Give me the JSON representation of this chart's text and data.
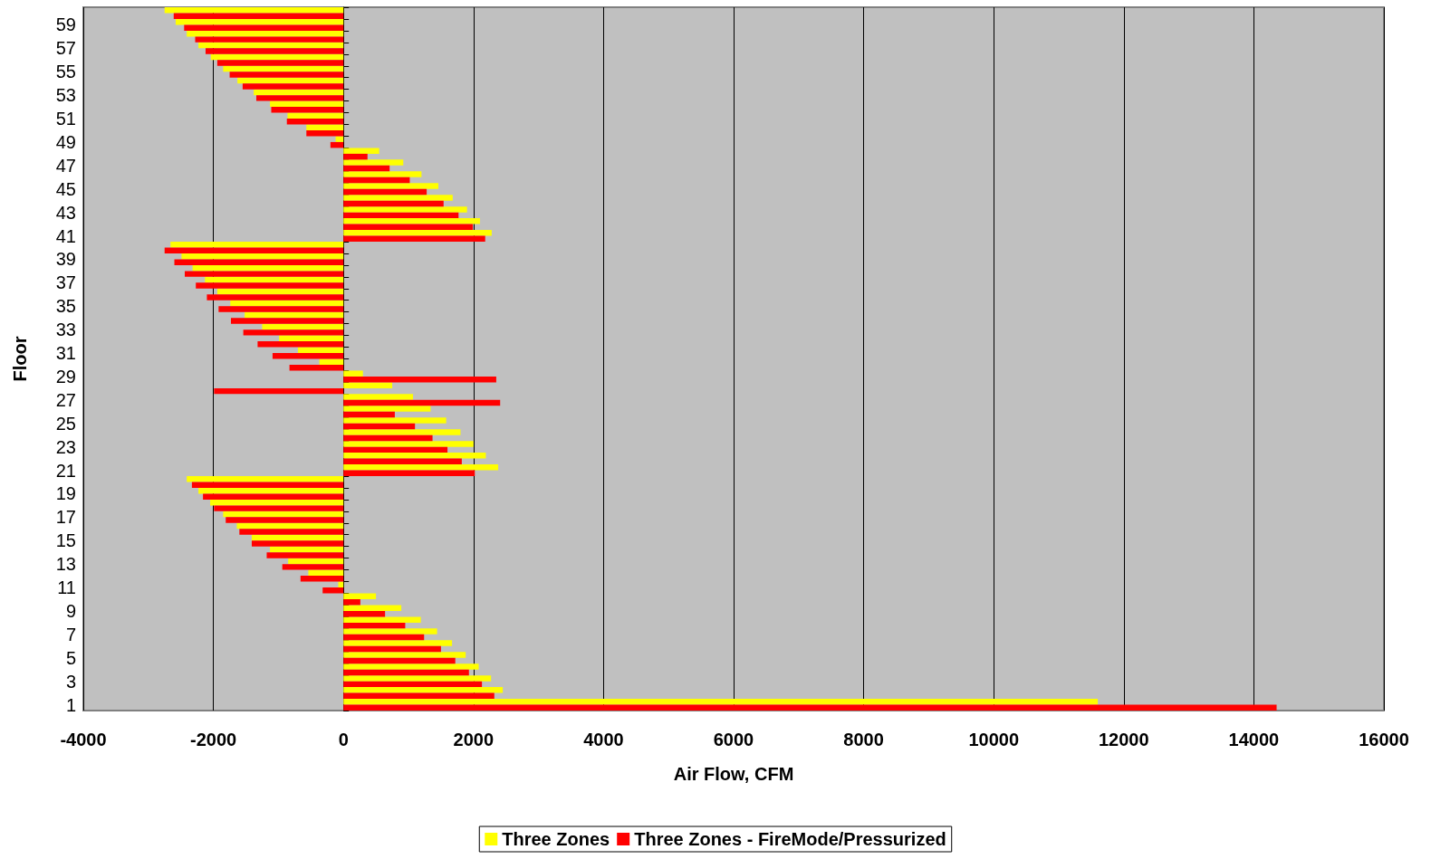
{
  "chart_data": {
    "type": "bar",
    "orientation": "horizontal",
    "xlabel": "Air Flow, CFM",
    "ylabel": "Floor",
    "categories": [
      null,
      "59",
      null,
      "57",
      null,
      "55",
      null,
      "53",
      null,
      "51",
      null,
      "49",
      null,
      "47",
      null,
      "45",
      null,
      "43",
      null,
      "41",
      null,
      "39",
      null,
      "37",
      null,
      "35",
      null,
      "33",
      null,
      "31",
      null,
      "29",
      null,
      "27",
      null,
      "25",
      null,
      "23",
      null,
      "21",
      null,
      "19",
      null,
      "17",
      null,
      "15",
      null,
      "13",
      null,
      "11",
      null,
      "9",
      null,
      "7",
      null,
      "5",
      null,
      "3",
      null,
      "1"
    ],
    "series": [
      {
        "name": "Three Zones",
        "color": "#ffff00",
        "values": [
          -2750,
          -2580,
          -2410,
          -2230,
          -2040,
          -1850,
          -1630,
          -1380,
          -1130,
          -860,
          -570,
          -120,
          550,
          920,
          1200,
          1460,
          1680,
          1900,
          2100,
          2280,
          -2660,
          -2490,
          -2320,
          -2130,
          -1940,
          -1740,
          -1520,
          -1250,
          -990,
          -700,
          -370,
          300,
          750,
          1070,
          1340,
          1580,
          1800,
          2000,
          2190,
          2380,
          -2410,
          -2230,
          -2050,
          -1850,
          -1640,
          -1410,
          -1130,
          -850,
          -540,
          -80,
          500,
          890,
          1190,
          1440,
          1670,
          1880,
          2080,
          2270,
          2450,
          11600
        ]
      },
      {
        "name": "Three Zones - FireMode/Pressurized",
        "color": "#ff0000",
        "values": [
          -2610,
          -2450,
          -2280,
          -2120,
          -1940,
          -1750,
          -1550,
          -1340,
          -1110,
          -870,
          -570,
          -200,
          370,
          710,
          1020,
          1280,
          1540,
          1770,
          1990,
          2180,
          -2750,
          -2600,
          -2440,
          -2270,
          -2100,
          -1920,
          -1730,
          -1540,
          -1320,
          -1090,
          -830,
          2350,
          -1990,
          2410,
          790,
          1100,
          1370,
          1600,
          1820,
          2020,
          -2330,
          -2160,
          -1990,
          -1810,
          -1600,
          -1410,
          -1180,
          -940,
          -660,
          -320,
          260,
          640,
          950,
          1240,
          1500,
          1720,
          1930,
          2130,
          2320,
          14350
        ]
      }
    ],
    "xlim": [
      -4000,
      16000
    ],
    "xticks": [
      -4000,
      -2000,
      0,
      2000,
      4000,
      6000,
      8000,
      10000,
      12000,
      14000,
      16000
    ],
    "grid": "x",
    "legend": "bottom"
  }
}
